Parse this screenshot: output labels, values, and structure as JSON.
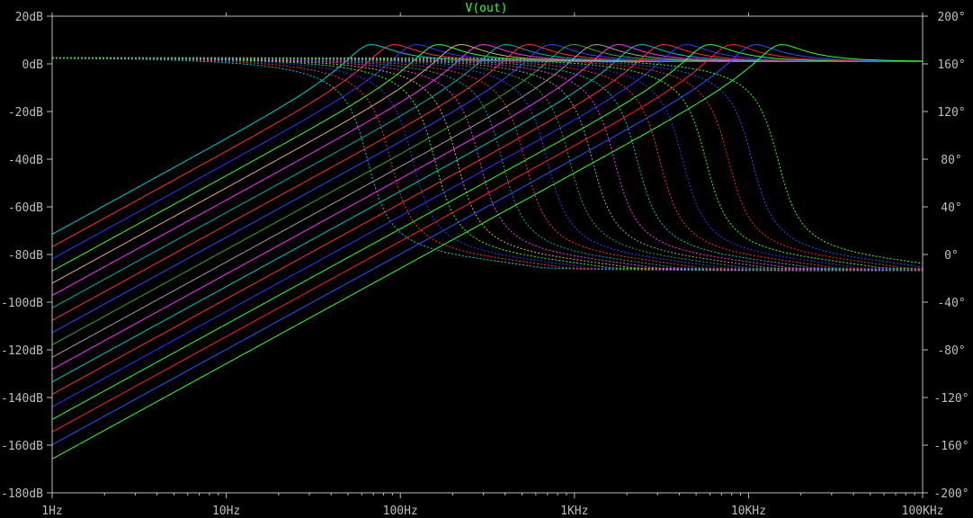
{
  "chart_data": {
    "type": "line",
    "title": "V(out)",
    "x_scale": "log",
    "xlim": [
      1,
      100000
    ],
    "x_ticks": [
      "1Hz",
      "10Hz",
      "100Hz",
      "1KHz",
      "10KHz",
      "100KHz"
    ],
    "y_left_lim": [
      -180,
      20
    ],
    "y_left_ticks": [
      "20dB",
      "0dB",
      "-20dB",
      "-40dB",
      "-60dB",
      "-80dB",
      "-100dB",
      "-120dB",
      "-140dB",
      "-160dB",
      "-180dB"
    ],
    "y_right_lim": [
      -200,
      200
    ],
    "y_right_ticks": [
      "200°",
      "160°",
      "120°",
      "80°",
      "40°",
      "0°",
      "-40°",
      "-80°",
      "-120°",
      "-160°",
      "-200°"
    ],
    "grid": false,
    "colors": {
      "background": "#000000",
      "axis": "#bdbdbd",
      "title": "#33ff33"
    },
    "series": [
      {
        "resonance_hz": 65,
        "color": "#00d0d0"
      },
      {
        "resonance_hz": 88,
        "color": "#ff3333"
      },
      {
        "resonance_hz": 118,
        "color": "#3333ff"
      },
      {
        "resonance_hz": 158,
        "color": "#33ff33"
      },
      {
        "resonance_hz": 212,
        "color": "#e0b070"
      },
      {
        "resonance_hz": 285,
        "color": "#ff33ff"
      },
      {
        "resonance_hz": 385,
        "color": "#00b0b0"
      },
      {
        "resonance_hz": 520,
        "color": "#ff3333"
      },
      {
        "resonance_hz": 700,
        "color": "#3344ff"
      },
      {
        "resonance_hz": 940,
        "color": "#2faa2f"
      },
      {
        "resonance_hz": 1270,
        "color": "#a0a0a0"
      },
      {
        "resonance_hz": 1700,
        "color": "#ff33ff"
      },
      {
        "resonance_hz": 2300,
        "color": "#00c8c8"
      },
      {
        "resonance_hz": 3100,
        "color": "#ff3333"
      },
      {
        "resonance_hz": 4200,
        "color": "#3333ff"
      },
      {
        "resonance_hz": 5700,
        "color": "#33ff33"
      },
      {
        "resonance_hz": 7700,
        "color": "#ff2222"
      },
      {
        "resonance_hz": 10500,
        "color": "#2255ff"
      },
      {
        "resonance_hz": 14800,
        "color": "#33ff33"
      }
    ]
  }
}
